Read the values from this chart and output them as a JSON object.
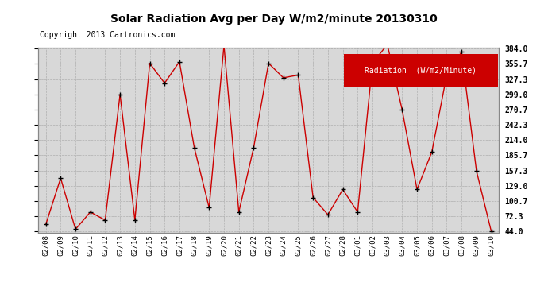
{
  "title": "Solar Radiation Avg per Day W/m2/minute 20130310",
  "copyright": "Copyright 2013 Cartronics.com",
  "legend_label": "Radiation  (W/m2/Minute)",
  "dates": [
    "02/08",
    "02/09",
    "02/10",
    "02/11",
    "02/12",
    "02/13",
    "02/14",
    "02/15",
    "02/16",
    "02/17",
    "02/18",
    "02/19",
    "02/20",
    "02/21",
    "02/22",
    "02/23",
    "02/24",
    "02/25",
    "02/26",
    "02/27",
    "02/28",
    "03/01",
    "03/02",
    "03/03",
    "03/04",
    "03/05",
    "03/06",
    "03/07",
    "03/08",
    "03/09",
    "03/10"
  ],
  "values": [
    57,
    143,
    48,
    80,
    65,
    299,
    65,
    357,
    320,
    360,
    200,
    88,
    390,
    80,
    200,
    357,
    330,
    335,
    107,
    75,
    122,
    80,
    357,
    392,
    270,
    122,
    192,
    335,
    378,
    157,
    44
  ],
  "line_color": "#cc0000",
  "marker_color": "#000000",
  "bg_color": "#ffffff",
  "plot_bg_color": "#d8d8d8",
  "grid_color": "#aaaaaa",
  "yticks": [
    44.0,
    72.3,
    100.7,
    129.0,
    157.3,
    185.7,
    214.0,
    242.3,
    270.7,
    299.0,
    327.3,
    355.7,
    384.0
  ],
  "ymin": 44.0,
  "ymax": 384.0,
  "title_fontsize": 10,
  "copyright_fontsize": 7,
  "legend_bg": "#cc0000",
  "legend_text_color": "#ffffff"
}
